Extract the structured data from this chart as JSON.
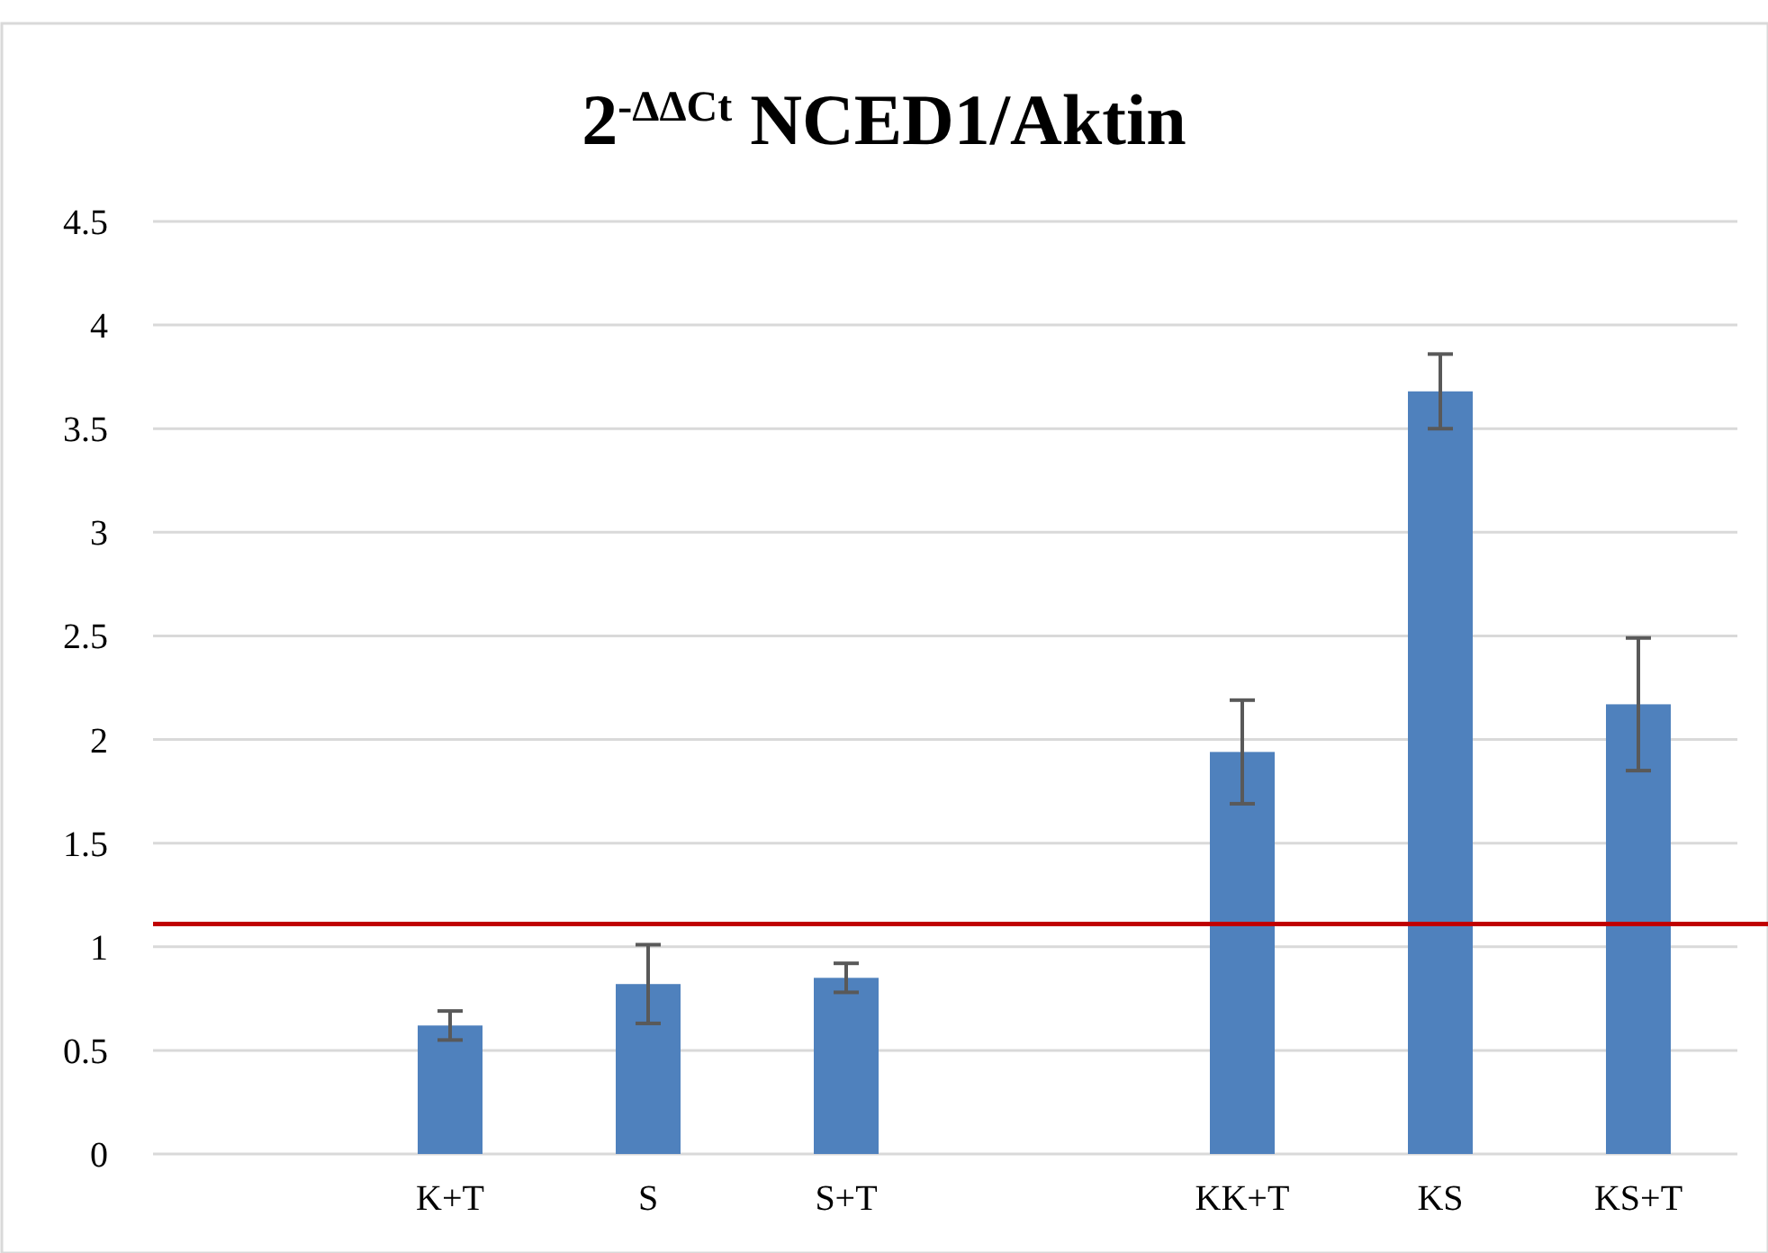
{
  "chart_data": {
    "type": "bar",
    "title": "2$^{-ΔΔCt}$ NCED1/Aktin",
    "categories": [
      null,
      "K+T",
      "S",
      "S+T",
      null,
      "KK+T",
      "KS",
      "KS+T"
    ],
    "values": [
      null,
      0.62,
      0.82,
      0.85,
      null,
      1.94,
      3.68,
      2.17
    ],
    "errors": [
      null,
      0.07,
      0.19,
      0.07,
      null,
      0.25,
      0.18,
      0.32
    ],
    "color": "#4f81bd",
    "ylim": [
      0,
      4.5
    ],
    "yticks": [
      0,
      0.5,
      1,
      1.5,
      2,
      2.5,
      3,
      3.5,
      4,
      4.5
    ],
    "grid": "y",
    "ref_lines": [
      {
        "axis": "y",
        "value": 1.11,
        "color": "#c00000"
      }
    ]
  }
}
